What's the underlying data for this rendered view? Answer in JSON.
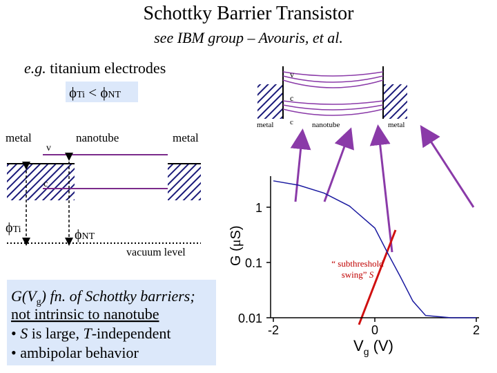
{
  "title": "Schottky Barrier Transistor",
  "subtitle": "see IBM group – Avouris, et al.",
  "note": {
    "lead": "e.g.",
    "text": " titanium electrodes",
    "relation": {
      "left": "ϕ",
      "left_sub": "Ti",
      "op": " < ",
      "right": "ϕ",
      "right_sub": "NT"
    }
  },
  "band_diagram": {
    "metal_left": "metal",
    "nanotube": "nanotube",
    "metal_right": "metal",
    "v": "v",
    "c": "c",
    "phi_ti": {
      "symbol": "ϕ",
      "sub": "Ti"
    },
    "phi_nt": {
      "symbol": "ϕ",
      "sub": "NT"
    },
    "vacuum": "vacuum level"
  },
  "inset": {
    "v": "v",
    "c": "c",
    "metal_left": "metal",
    "c_bottom": "c",
    "nanotube": "nanotube",
    "metal_right": "metal"
  },
  "summary": {
    "line1": [
      "G(V",
      "g",
      ") fn. of Schottky barriers;"
    ],
    "line2": "not intrinsic to nanotube",
    "line3": [
      "• ",
      "S",
      " is large, ",
      "T",
      "-independent"
    ],
    "line4": "• ambipolar behavior"
  },
  "chart_data": {
    "type": "line",
    "log_y": true,
    "x_label": [
      "V",
      "g",
      " (V)"
    ],
    "y_label": [
      "G (",
      "μ",
      "S)"
    ],
    "annotation": [
      "“ subthreshold",
      "swing” ",
      "S"
    ],
    "x": [
      -2,
      -1.5,
      -1,
      -0.5,
      0,
      0.25,
      0.5,
      0.75,
      1,
      1.5,
      2
    ],
    "series": [
      {
        "color": "#1a1aa0",
        "values": [
          3.0,
          2.5,
          1.8,
          1.05,
          0.42,
          0.15,
          0.056,
          0.02,
          0.011,
          0.01,
          0.01
        ]
      }
    ],
    "xlim": [
      -2,
      2
    ],
    "xticks": [
      -2,
      0,
      2
    ],
    "ylim": [
      0.01,
      3.65
    ],
    "yticks": [
      1,
      0.1,
      0.01
    ]
  }
}
